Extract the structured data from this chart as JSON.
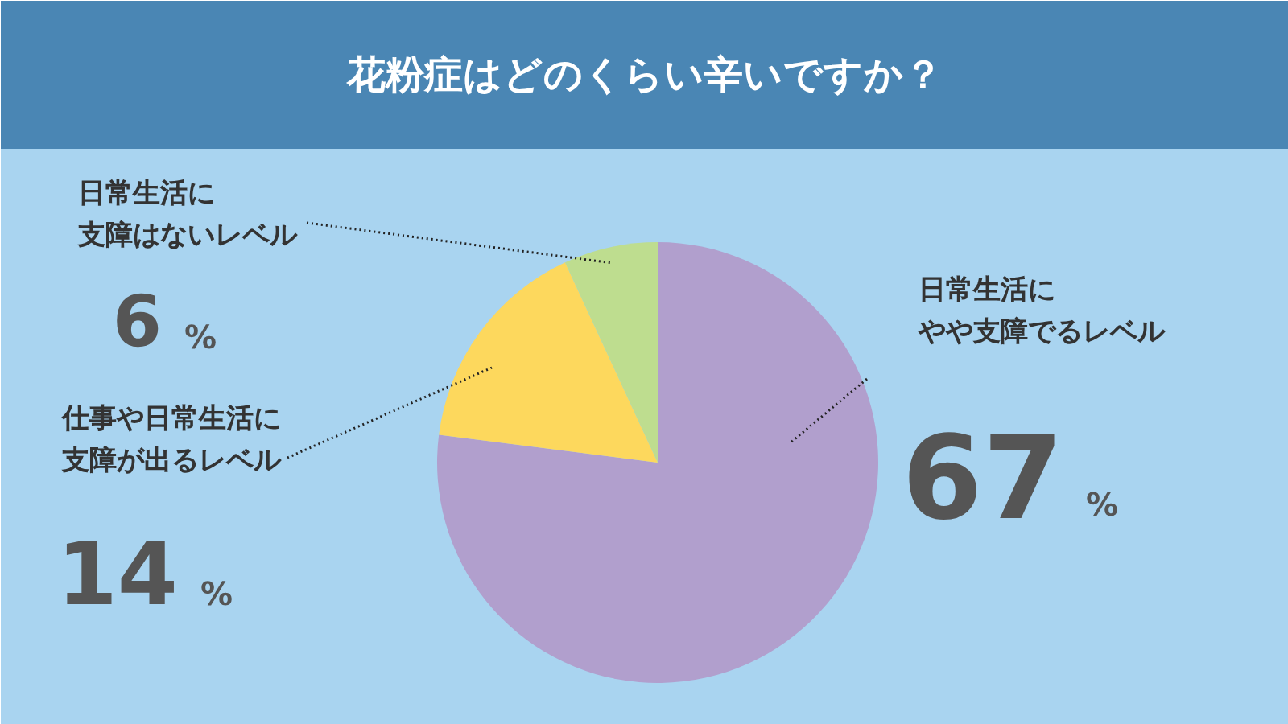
{
  "chart_data": {
    "type": "pie",
    "title": "花粉症はどのくらい辛いですか？",
    "categories": [
      "日常生活にやや支障でるレベル",
      "仕事や日常生活に支障が出るレベル",
      "日常生活に支障はないレベル"
    ],
    "values": [
      67,
      14,
      6
    ],
    "colors": [
      "#b19fcd",
      "#fdd85d",
      "#bedd8f"
    ],
    "value_labels": [
      "67 %",
      "14 %",
      "6 %"
    ]
  }
}
